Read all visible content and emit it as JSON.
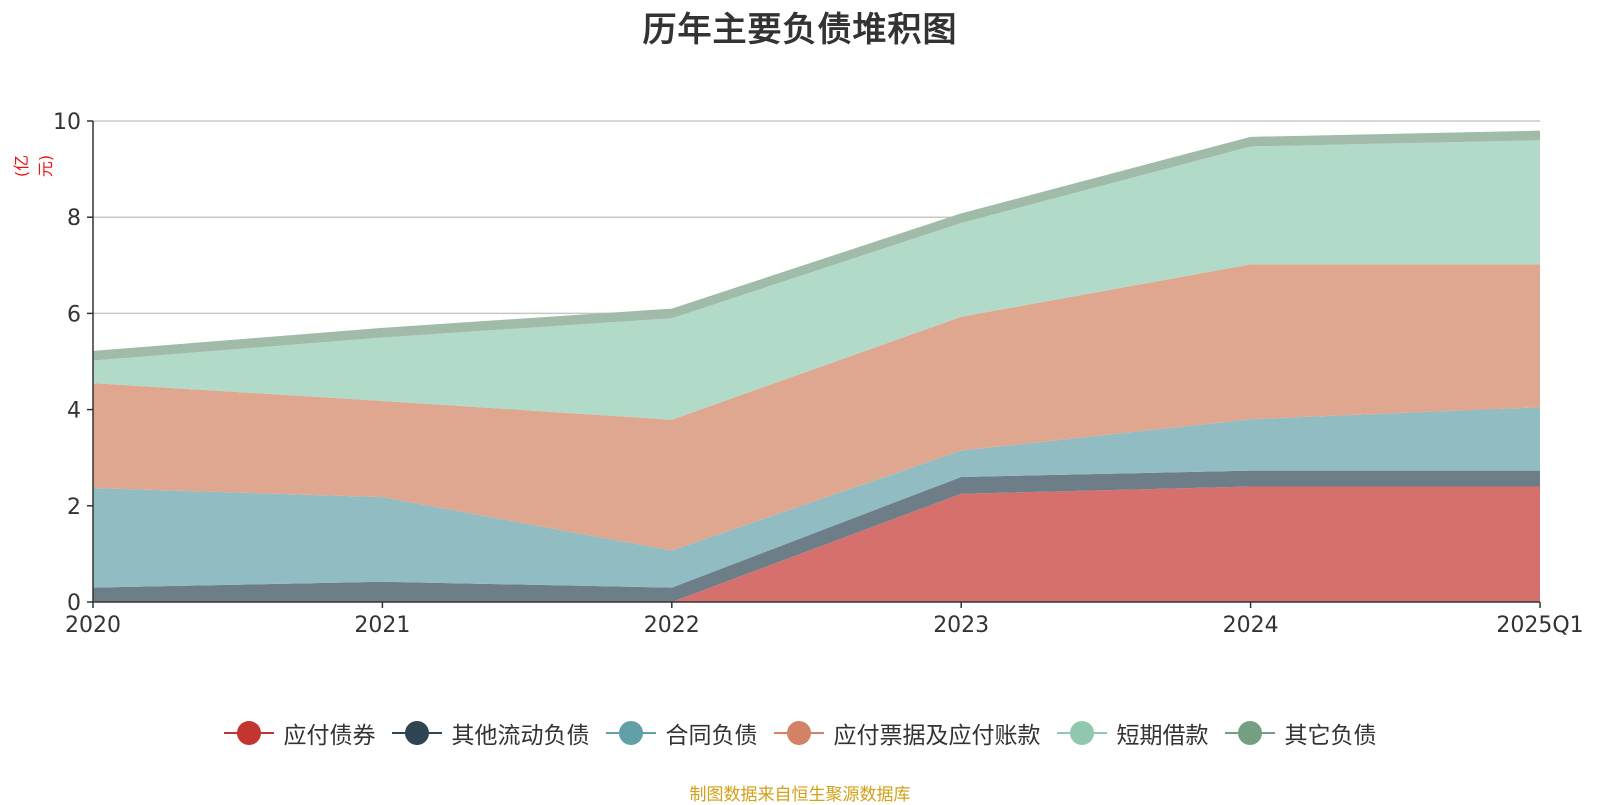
{
  "chart_data": {
    "type": "area",
    "stacked": true,
    "title": "历年主要负债堆积图",
    "unit_label": "(亿元)",
    "categories": [
      "2020",
      "2021",
      "2022",
      "2023",
      "2024",
      "2025Q1"
    ],
    "ylim": [
      0,
      10
    ],
    "yticks": [
      0,
      2,
      4,
      6,
      8,
      10
    ],
    "grid": true,
    "legend_position": "bottom",
    "series": [
      {
        "name": "应付债券",
        "values": [
          0,
          0,
          0,
          2.25,
          2.4,
          2.4
        ],
        "color": "#c23531",
        "fill": "#d5706d"
      },
      {
        "name": "其他流动负债",
        "values": [
          0.3,
          0.42,
          0.3,
          0.35,
          0.33,
          0.33
        ],
        "color": "#2f4554",
        "fill": "#6e7e88"
      },
      {
        "name": "合同负债",
        "values": [
          2.07,
          1.76,
          0.77,
          0.55,
          1.07,
          1.32
        ],
        "color": "#61a0a8",
        "fill": "#90bcc2"
      },
      {
        "name": "应付票据及应付账款",
        "values": [
          2.18,
          2.0,
          2.72,
          2.78,
          3.22,
          2.97
        ],
        "color": "#d48265",
        "fill": "#e0a790"
      },
      {
        "name": "短期借款",
        "values": [
          0.47,
          1.32,
          2.11,
          1.95,
          2.45,
          2.58
        ],
        "color": "#91c7ae",
        "fill": "#b2dac8"
      },
      {
        "name": "其它负债",
        "values": [
          0.2,
          0.2,
          0.2,
          0.2,
          0.2,
          0.2
        ],
        "color": "#749f83",
        "fill": "#a0bba8"
      }
    ],
    "source_note": "制图数据来自恒生聚源数据库"
  }
}
